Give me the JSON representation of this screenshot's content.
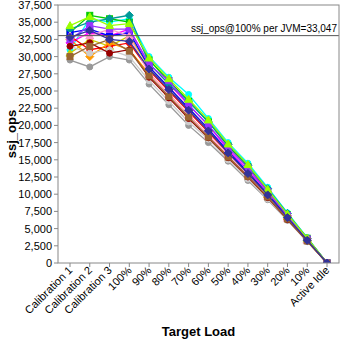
{
  "chart_data": {
    "type": "line",
    "x_label": "Target Load",
    "y_label": "ssj_ops",
    "annotation": {
      "text": "ssj_ops@100% per JVM=33,047",
      "value": 33047
    },
    "categories": [
      "Calibration 1",
      "Calibration 2",
      "Calibration 3",
      "100%",
      "90%",
      "80%",
      "70%",
      "60%",
      "50%",
      "40%",
      "30%",
      "20%",
      "10%",
      "Active Idle"
    ],
    "ylim": [
      0,
      37500
    ],
    "yticks": [
      0,
      {
        "value": 2500,
        "label": "2,500"
      },
      {
        "value": 5000,
        "label": "5,000"
      },
      {
        "value": 7500,
        "label": "7,500"
      },
      {
        "value": 10000,
        "label": "10,000"
      },
      {
        "value": 12500,
        "label": "12,500"
      },
      {
        "value": 15000,
        "label": "15,000"
      },
      {
        "value": 17500,
        "label": "17,500"
      },
      {
        "value": 20000,
        "label": "20,000"
      },
      {
        "value": 22500,
        "label": "22,500"
      },
      {
        "value": 25000,
        "label": "25,000"
      },
      {
        "value": 27500,
        "label": "27,500"
      },
      {
        "value": 30000,
        "label": "30,000"
      },
      {
        "value": 32500,
        "label": "32,500"
      },
      {
        "value": 35000,
        "label": "35,000"
      },
      {
        "value": 37500,
        "label": "37,500"
      }
    ],
    "grid": false,
    "series": [
      {
        "color": "#00ffff",
        "marker": "circle",
        "values": [
          31000,
          35500,
          35000,
          35500,
          30000,
          27000,
          24500,
          21000,
          17500,
          14500,
          11000,
          7300,
          3700,
          0
        ]
      },
      {
        "color": "#00cc00",
        "marker": "square",
        "values": [
          33500,
          36000,
          35500,
          35000,
          29500,
          26500,
          23500,
          20500,
          17000,
          14000,
          10500,
          7000,
          3600,
          0
        ]
      },
      {
        "color": "#ff00ff",
        "marker": "diamond",
        "values": [
          32000,
          33500,
          33000,
          34000,
          29000,
          26000,
          23000,
          20000,
          16500,
          13500,
          10300,
          6900,
          3500,
          0
        ]
      },
      {
        "color": "#cccc00",
        "marker": "triangle",
        "values": [
          30500,
          32500,
          31500,
          33000,
          28500,
          25500,
          22500,
          19500,
          16000,
          13200,
          10000,
          6700,
          3400,
          0
        ]
      },
      {
        "color": "#ff0000",
        "marker": "circle",
        "values": [
          33000,
          31000,
          31500,
          32000,
          28000,
          25000,
          22000,
          19000,
          16000,
          13000,
          9800,
          6600,
          3300,
          0
        ]
      },
      {
        "color": "#0000ff",
        "marker": "square",
        "values": [
          33500,
          34000,
          33000,
          33500,
          28500,
          25500,
          22500,
          19500,
          16200,
          13200,
          10000,
          6700,
          3400,
          0
        ]
      },
      {
        "color": "#ff9900",
        "marker": "diamond",
        "values": [
          32500,
          30000,
          32000,
          31000,
          27500,
          24500,
          21500,
          18500,
          15500,
          12500,
          9500,
          6400,
          3200,
          0
        ]
      },
      {
        "color": "#999999",
        "marker": "circle",
        "values": [
          29500,
          28500,
          30000,
          29500,
          26000,
          23000,
          20000,
          17500,
          14800,
          12000,
          9200,
          6200,
          3100,
          0
        ]
      },
      {
        "color": "#cccccc",
        "marker": "circle",
        "values": [
          31500,
          30500,
          31000,
          30000,
          26500,
          23500,
          20500,
          18000,
          15000,
          12200,
          9300,
          6300,
          3200,
          0
        ]
      },
      {
        "color": "#009999",
        "marker": "diamond",
        "values": [
          34000,
          35000,
          35500,
          36000,
          29000,
          26000,
          23500,
          20500,
          17200,
          14200,
          10800,
          7200,
          3600,
          0
        ]
      },
      {
        "color": "#ff99cc",
        "marker": "triangle",
        "values": [
          33000,
          33000,
          34000,
          33000,
          27500,
          24500,
          21500,
          18500,
          15800,
          12800,
          9700,
          6500,
          3300,
          0
        ]
      },
      {
        "color": "#9933ff",
        "marker": "square",
        "values": [
          32500,
          34500,
          34000,
          34000,
          28800,
          26500,
          23000,
          20000,
          16800,
          13800,
          10400,
          6900,
          3500,
          0
        ]
      },
      {
        "color": "#990000",
        "marker": "circle",
        "values": [
          31500,
          32000,
          30500,
          31000,
          27000,
          24000,
          21000,
          18200,
          15300,
          12500,
          9500,
          6300,
          3200,
          0
        ]
      },
      {
        "color": "#99ff00",
        "marker": "triangle",
        "values": [
          34500,
          35800,
          34500,
          34800,
          29800,
          26800,
          23800,
          20800,
          17300,
          14300,
          10700,
          7100,
          3600,
          0
        ]
      },
      {
        "color": "#996633",
        "marker": "square",
        "values": [
          30000,
          31500,
          32500,
          30800,
          27200,
          24200,
          21200,
          18300,
          15400,
          12600,
          9600,
          6400,
          3200,
          0
        ]
      },
      {
        "color": "#333399",
        "marker": "diamond",
        "values": [
          32800,
          33800,
          32500,
          32200,
          28200,
          25200,
          22200,
          19200,
          16000,
          13000,
          9900,
          6600,
          3300,
          0
        ]
      }
    ]
  }
}
